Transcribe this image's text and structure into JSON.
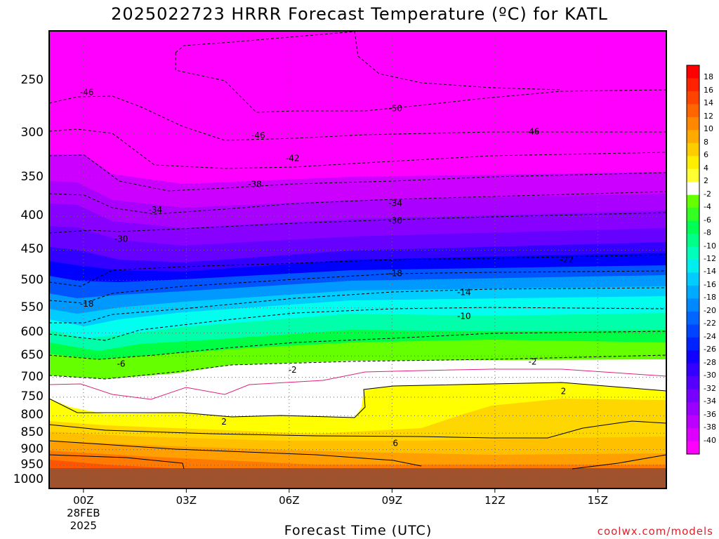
{
  "chart_data": {
    "type": "heatmap",
    "title": "2025022723 HRRR Forecast Temperature (ºC) for KATL",
    "xlabel": "Forecast Time (UTC)",
    "ylabel": "",
    "y_axis": "pressure (hPa), log scale, inverted",
    "ylim": [
      1030,
      210
    ],
    "y_ticks": [
      "250",
      "300",
      "350",
      "400",
      "450",
      "500",
      "550",
      "600",
      "650",
      "700",
      "750",
      "800",
      "850",
      "900",
      "950",
      "1000"
    ],
    "x_ticks": [
      {
        "label": "00Z",
        "date": "28FEB",
        "year": "2025"
      },
      {
        "label": "03Z"
      },
      {
        "label": "06Z"
      },
      {
        "label": "09Z"
      },
      {
        "label": "12Z"
      },
      {
        "label": "15Z"
      }
    ],
    "xlim_hours": [
      -1,
      17
    ],
    "colorbar": {
      "labels": [
        "18",
        "16",
        "14",
        "12",
        "10",
        "8",
        "6",
        "4",
        "2",
        "-2",
        "-4",
        "-6",
        "-8",
        "-10",
        "-12",
        "-14",
        "-16",
        "-18",
        "-20",
        "-22",
        "-24",
        "-26",
        "-28",
        "-30",
        "-32",
        "-34",
        "-36",
        "-38",
        "-40"
      ]
    },
    "contour_labels": [
      {
        "value": "-46",
        "hour": 0.1,
        "hpa": 260
      },
      {
        "value": "-50",
        "hour": 9.1,
        "hpa": 275
      },
      {
        "value": "-46",
        "hour": 5.1,
        "hpa": 302
      },
      {
        "value": "-46",
        "hour": 13.1,
        "hpa": 298
      },
      {
        "value": "-42",
        "hour": 6.1,
        "hpa": 327
      },
      {
        "value": "-38",
        "hour": 5.0,
        "hpa": 358
      },
      {
        "value": "-34",
        "hour": 2.1,
        "hpa": 391
      },
      {
        "value": "-34",
        "hour": 9.1,
        "hpa": 382
      },
      {
        "value": "-30",
        "hour": 1.1,
        "hpa": 433
      },
      {
        "value": "-30",
        "hour": 9.1,
        "hpa": 406
      },
      {
        "value": "-22",
        "hour": 14.1,
        "hpa": 465
      },
      {
        "value": "-18",
        "hour": 0.1,
        "hpa": 542
      },
      {
        "value": "-18",
        "hour": 9.1,
        "hpa": 488
      },
      {
        "value": "-14",
        "hour": 11.1,
        "hpa": 521
      },
      {
        "value": "-10",
        "hour": 11.1,
        "hpa": 566
      },
      {
        "value": "-6",
        "hour": 1.1,
        "hpa": 668
      },
      {
        "value": "-2",
        "hour": 6.1,
        "hpa": 682
      },
      {
        "value": "-2",
        "hour": 13.1,
        "hpa": 663
      },
      {
        "value": "2",
        "hour": 14.0,
        "hpa": 735
      },
      {
        "value": "2",
        "hour": 4.1,
        "hpa": 817
      },
      {
        "value": "6",
        "hour": 9.1,
        "hpa": 880
      }
    ],
    "terrain_below_hpa": 975
  },
  "page": {
    "credit": "coolwx.com/models"
  },
  "colors": {
    "terrain": "#a0522d",
    "zero_line": "#e0207a",
    "credit": "#e0202a"
  }
}
